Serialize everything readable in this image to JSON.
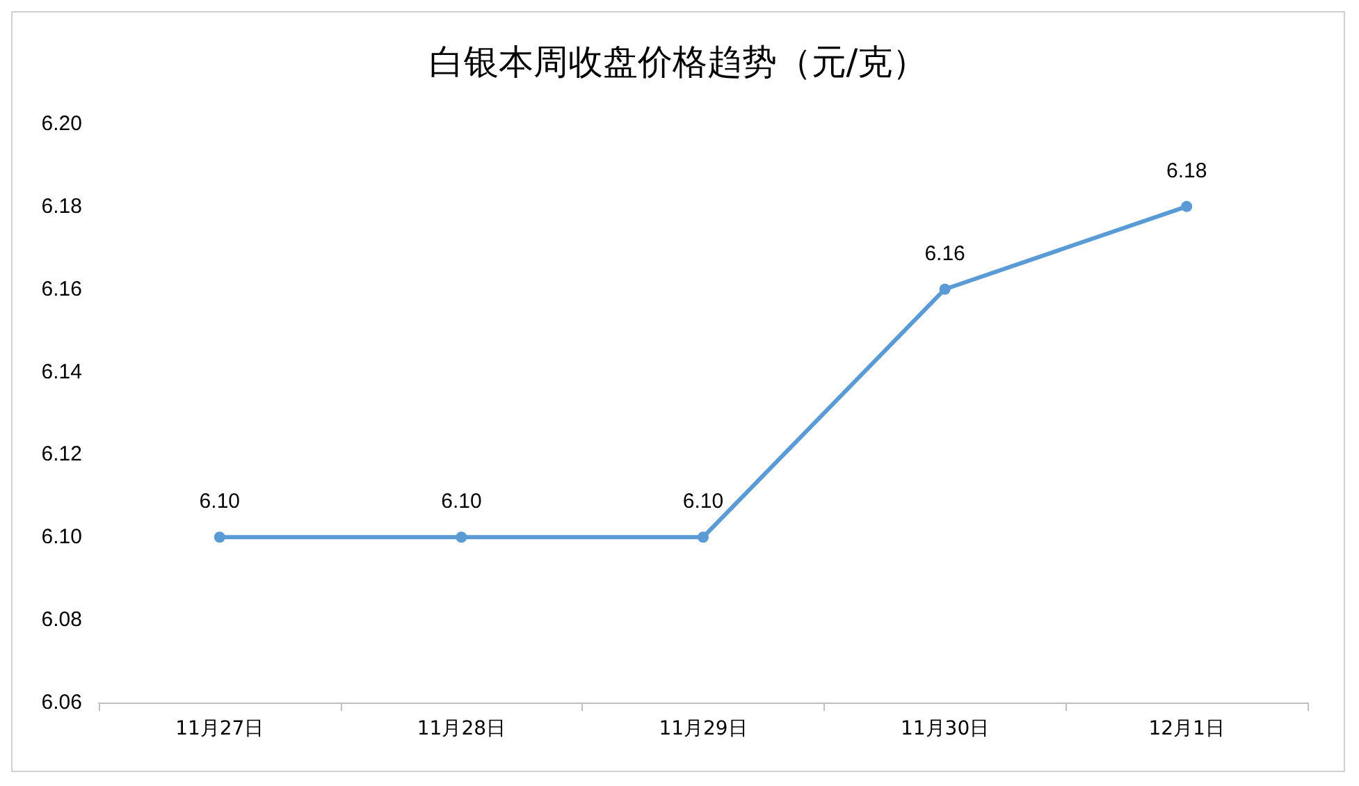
{
  "chart_data": {
    "type": "line",
    "title": "白银本周收盘价格趋势（元/克）",
    "categories": [
      "11月27日",
      "11月28日",
      "11月29日",
      "11月30日",
      "12月1日"
    ],
    "series": [
      {
        "color": "#5b9bd5",
        "values": [
          6.1,
          6.1,
          6.1,
          6.16,
          6.18
        ]
      }
    ],
    "value_labels": [
      "6.10",
      "6.10",
      "6.10",
      "6.16",
      "6.18"
    ],
    "ylim": [
      6.06,
      6.2
    ],
    "yticks": [
      {
        "value": 6.06,
        "label": "6.06"
      },
      {
        "value": 6.08,
        "label": "6.08"
      },
      {
        "value": 6.1,
        "label": "6.10"
      },
      {
        "value": 6.12,
        "label": "6.12"
      },
      {
        "value": 6.14,
        "label": "6.14"
      },
      {
        "value": 6.16,
        "label": "6.16"
      },
      {
        "value": 6.18,
        "label": "6.18"
      },
      {
        "value": 6.2,
        "label": "6.20"
      }
    ],
    "marker": "circle",
    "line_style": "solid"
  }
}
